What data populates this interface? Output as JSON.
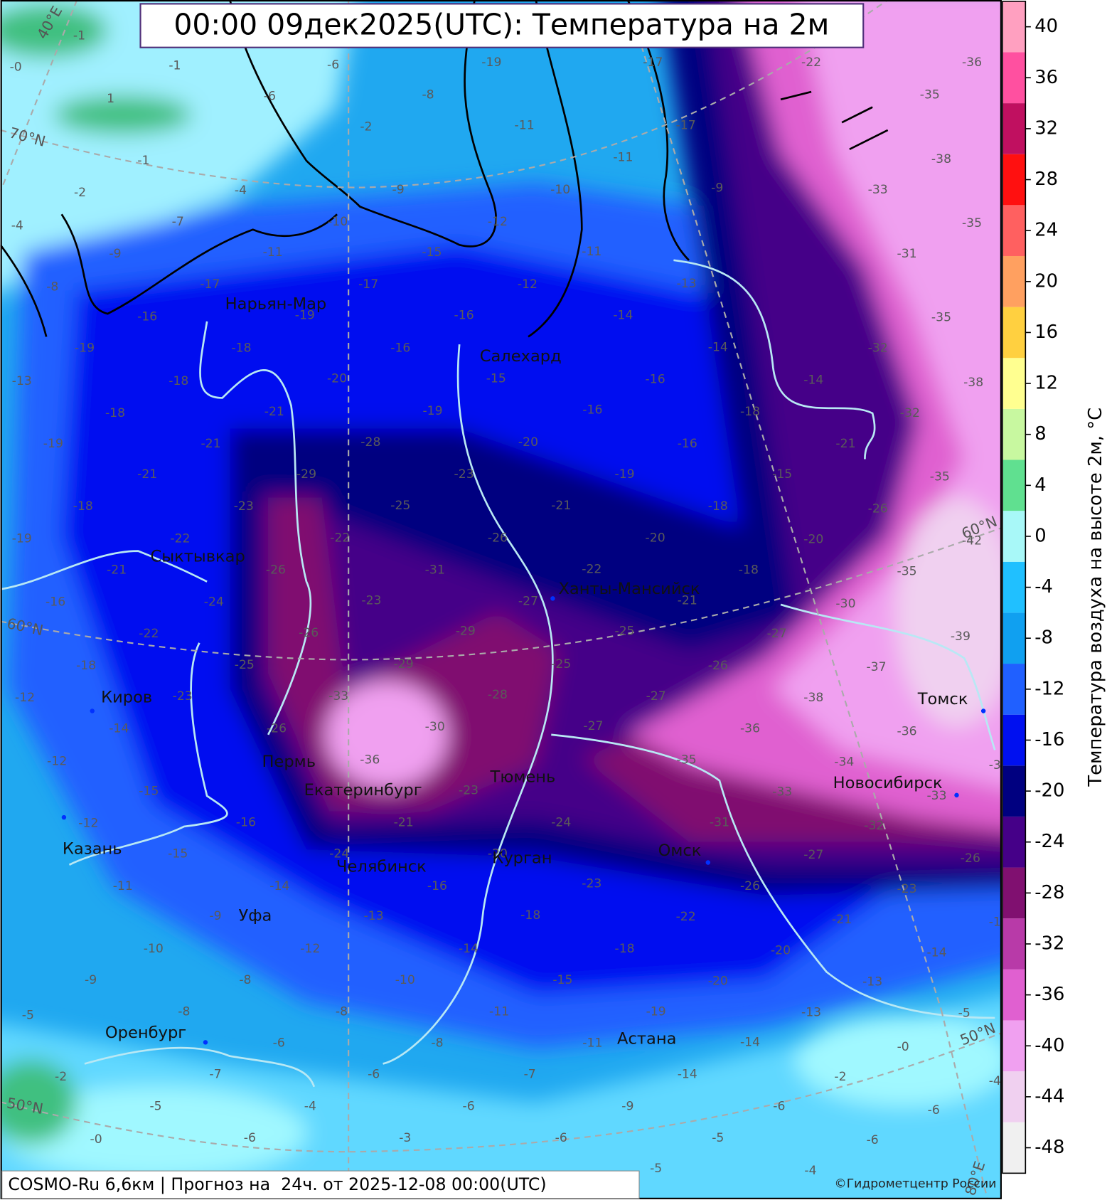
{
  "title": "00:00 09дек2025(UTC): Температура на 2м",
  "footer": "COSMO-Ru 6,6км | Прогноз на  24ч. от 2025-12-08 00:00(UTC)",
  "copyright": "©Гидрометцентр России",
  "colorbar": {
    "label": "Температура воздуха на высоте 2м, °C",
    "lim": [
      -50,
      42
    ],
    "bounds": [
      -50,
      -46,
      -42,
      -38,
      -34,
      -30,
      -26,
      -22,
      -18,
      -14,
      -10,
      -6,
      -2,
      2,
      6,
      10,
      14,
      18,
      22,
      26,
      30,
      34,
      38,
      42
    ],
    "colors": [
      "#f0f0f0",
      "#f0d0f0",
      "#f0a0f0",
      "#e060d0",
      "#b83aa8",
      "#801070",
      "#450088",
      "#000080",
      "#0010f0",
      "#2060ff",
      "#10a0f0",
      "#20c0ff",
      "#a8f8f8",
      "#60e090",
      "#c8f8a0",
      "#ffff90",
      "#ffd040",
      "#ffa060",
      "#ff6060",
      "#ff1010",
      "#c01060",
      "#ff50a0",
      "#ffa0c0"
    ],
    "ticks": [
      -48,
      -44,
      -40,
      -36,
      -32,
      -28,
      -24,
      -20,
      -16,
      -12,
      -8,
      -4,
      0,
      4,
      8,
      12,
      16,
      20,
      24,
      28,
      32,
      36,
      40
    ]
  },
  "cities": [
    "Нарьян-Мар",
    "Салехард",
    "Сыктывкар",
    "Ханты-Мансийск",
    "Киров",
    "Пермь",
    "Екатеринбург",
    "Тюмень",
    "Томск",
    "Новосибирск",
    "Казань",
    "Челябинск",
    "Курган",
    "Омск",
    "Уфа",
    "Оренбург",
    "Астана"
  ],
  "graticule_labels": [
    "40°E",
    "70°N",
    "60°N",
    "50°N",
    "60°N",
    "50°N",
    "80°E"
  ],
  "temperature_labels": [
    -1,
    -1,
    1,
    -1,
    -2,
    -4,
    {
      "value": 0,
      "label": "-0"
    },
    -6,
    -6,
    -8,
    -2,
    -4,
    -9,
    -19,
    -11,
    -10,
    -11,
    -17,
    -17,
    -9,
    -22,
    -36,
    -35,
    -38,
    -33,
    -35,
    -31,
    -35,
    -38,
    -32,
    -32,
    -35,
    -35,
    -39,
    -37,
    -38,
    -36,
    -34,
    -36,
    -35,
    -33,
    -31,
    -32,
    -33,
    -26,
    -23,
    -21,
    -20,
    -20,
    -19,
    -18,
    -18,
    -23,
    -24,
    -22,
    -26,
    -27,
    -27,
    -26,
    -27,
    -25,
    -27,
    -21,
    -18,
    -20,
    -20,
    -22,
    -21,
    -19,
    -18,
    -15,
    -21,
    -26,
    -30,
    -18,
    -16,
    -16,
    -16,
    -20,
    -14,
    -14,
    -14,
    -13,
    -12,
    -11,
    -12,
    -16,
    -15,
    -17,
    -16,
    -15,
    -19,
    -23,
    -25,
    -26,
    -31,
    -27,
    -29,
    -25,
    -28,
    -30,
    -23,
    -29,
    -22,
    -28,
    -29,
    -26,
    -26,
    -33,
    -36,
    -26,
    -23,
    -21,
    -24,
    -20,
    -16,
    -13,
    -12,
    -10,
    -14,
    -11,
    -15,
    -11,
    -8,
    -7,
    -6,
    -3,
    -6,
    -8,
    -6,
    -4,
    -8,
    -9,
    -8,
    -10,
    -7,
    -11,
    -9,
    -5,
    -2,
    -5,
    -6,
    {
      "value": 0,
      "label": "-0"
    },
    -15,
    -15,
    -16,
    -14,
    -12,
    -12,
    -14,
    -12,
    -23,
    -18,
    -22,
    -25,
    -24,
    -21,
    -16,
    -19,
    -18,
    -22,
    -23,
    -21,
    -21,
    -21,
    -18,
    -19,
    -18,
    -19,
    -13,
    -16,
    -17,
    -18,
    -19,
    -20,
    -9,
    -8,
    -11,
    -10,
    -7,
    -3,
    -1,
    -4,
    -6,
    -6,
    -4,
    -2,
    {
      "value": 0,
      "label": "-0"
    },
    -13,
    -13,
    -14,
    -14,
    -14,
    -9,
    -6,
    -5,
    -5,
    -6,
    -5,
    -42
  ]
}
